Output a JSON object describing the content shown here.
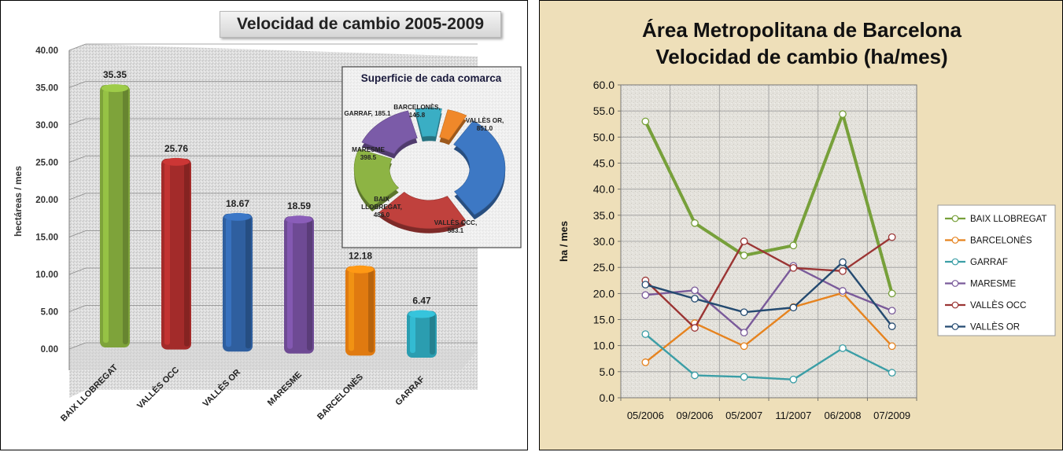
{
  "bar_chart_title": "Velocidad de cambio  2005-2009",
  "line_chart_title_line1": "Área Metropolitana de Barcelona",
  "line_chart_title_line2": "Velocidad de cambio (ha/mes)",
  "chart_data": [
    {
      "type": "bar",
      "title": "Velocidad de cambio  2005-2009",
      "ylabel": "hectáreas / mes",
      "xlabel": "",
      "categories": [
        "BAIX LLOBREGAT",
        "VALLÈS OCC",
        "VALLÈS OR",
        "MARESME",
        "BARCELONÈS",
        "GARRAF"
      ],
      "values": [
        35.35,
        25.76,
        18.67,
        18.59,
        12.18,
        6.47
      ],
      "data_labels": [
        "35.35",
        "25.76",
        "18.67",
        "18.59",
        "12.18",
        "6.47"
      ],
      "colors": [
        "#7ea33a",
        "#a32b2a",
        "#2f5f9f",
        "#6e4a94",
        "#e07a10",
        "#2b9db0"
      ],
      "ylim": [
        0,
        40
      ],
      "yticks": [
        "0.00",
        "5.00",
        "10.00",
        "15.00",
        "20.00",
        "25.00",
        "30.00",
        "35.00",
        "40.00"
      ],
      "grid": true
    },
    {
      "type": "pie",
      "style": "doughnut",
      "title": "Superficie de cada comarca",
      "slices": [
        {
          "label": "VALLÈS OR,",
          "value_label": "851.0",
          "value": 851.0,
          "color": "#3d78c4"
        },
        {
          "label": "VALLÈS OCC,",
          "value_label": "583.1",
          "value": 583.1,
          "color": "#c0413d"
        },
        {
          "label": "BAIX LLOBREGAT,",
          "value_label": "486.0",
          "value": 486.0,
          "color": "#8db444"
        },
        {
          "label": "MARESME",
          "value_label": "398.5",
          "value": 398.5,
          "color": "#7b5ba8"
        },
        {
          "label": "GARRAF,",
          "value_label": "185.1",
          "value": 185.1,
          "color": "#3aaec4"
        },
        {
          "label": "BARCELONÈS,",
          "value_label": "145.8",
          "value": 145.8,
          "color": "#f0882a"
        }
      ]
    },
    {
      "type": "line",
      "title": "Área Metropolitana de Barcelona Velocidad de cambio (ha/mes)",
      "ylabel": "ha / mes",
      "xlabel": "",
      "categories": [
        "05/2006",
        "09/2006",
        "05/2007",
        "11/2007",
        "06/2008",
        "07/2009"
      ],
      "ylim": [
        0,
        60
      ],
      "yticks": [
        "0.0",
        "5.0",
        "10.0",
        "15.0",
        "20.0",
        "25.0",
        "30.0",
        "35.0",
        "40.0",
        "45.0",
        "50.0",
        "55.0",
        "60.0"
      ],
      "grid": true,
      "legend_position": "right",
      "series": [
        {
          "name": "BAIX LLOBREGAT",
          "color": "#77a03a",
          "values": [
            53.0,
            33.5,
            27.3,
            29.2,
            54.4,
            20.0
          ]
        },
        {
          "name": "BARCELONÈS",
          "color": "#e6831f",
          "values": [
            6.8,
            14.3,
            9.9,
            17.4,
            20.1,
            9.9
          ]
        },
        {
          "name": "GARRAF",
          "color": "#3b9ea6",
          "values": [
            12.2,
            4.3,
            4.0,
            3.5,
            9.5,
            4.8
          ]
        },
        {
          "name": "MARESME",
          "color": "#7a5a9a",
          "values": [
            19.7,
            20.6,
            12.5,
            25.3,
            20.5,
            16.7
          ]
        },
        {
          "name": "VALLÈS OCC",
          "color": "#9b3534",
          "values": [
            22.5,
            13.4,
            30.0,
            24.9,
            24.3,
            30.8
          ]
        },
        {
          "name": "VALLÈS OR",
          "color": "#244a70",
          "values": [
            21.7,
            19.0,
            16.4,
            17.3,
            26.0,
            13.7
          ]
        }
      ]
    }
  ]
}
